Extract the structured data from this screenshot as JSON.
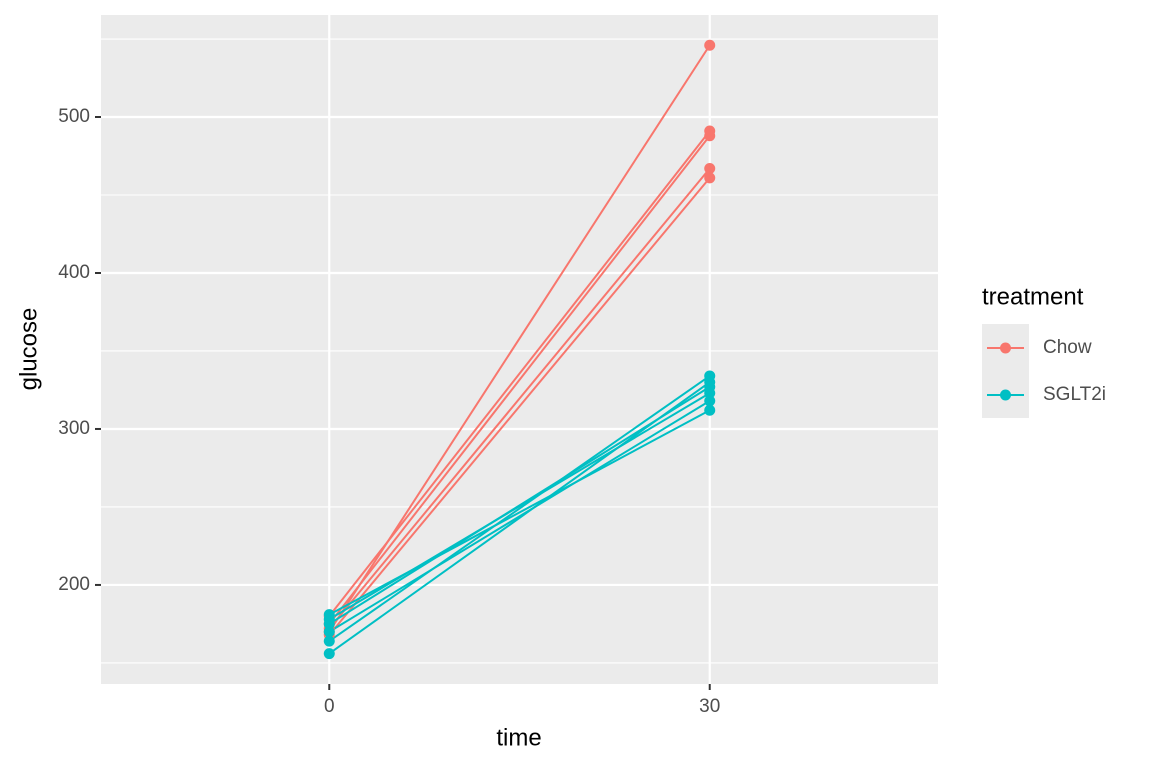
{
  "chart_data": {
    "type": "line",
    "x_label": "time",
    "y_label": "glucose",
    "x": [
      0,
      30
    ],
    "xlim": [
      -18,
      48
    ],
    "xticks": [
      0,
      30
    ],
    "ylim": [
      136.5,
      565.4
    ],
    "yticks": [
      200,
      300,
      400,
      500
    ],
    "y_minor_grid": [
      150,
      250,
      350,
      450,
      550
    ],
    "grid": true,
    "legend_title": "treatment",
    "legend_position": "right",
    "groups": [
      {
        "name": "Chow",
        "color": "#f8766d",
        "lines": [
          [
            170,
            546
          ],
          [
            180,
            491
          ],
          [
            175,
            488
          ],
          [
            172,
            467
          ],
          [
            168,
            461
          ]
        ]
      },
      {
        "name": "SGLT2i",
        "color": "#00bfc4",
        "lines": [
          [
            156,
            330
          ],
          [
            164,
            334
          ],
          [
            170,
            318
          ],
          [
            178,
            323
          ],
          [
            181,
            312
          ],
          [
            175,
            327
          ]
        ]
      }
    ]
  }
}
